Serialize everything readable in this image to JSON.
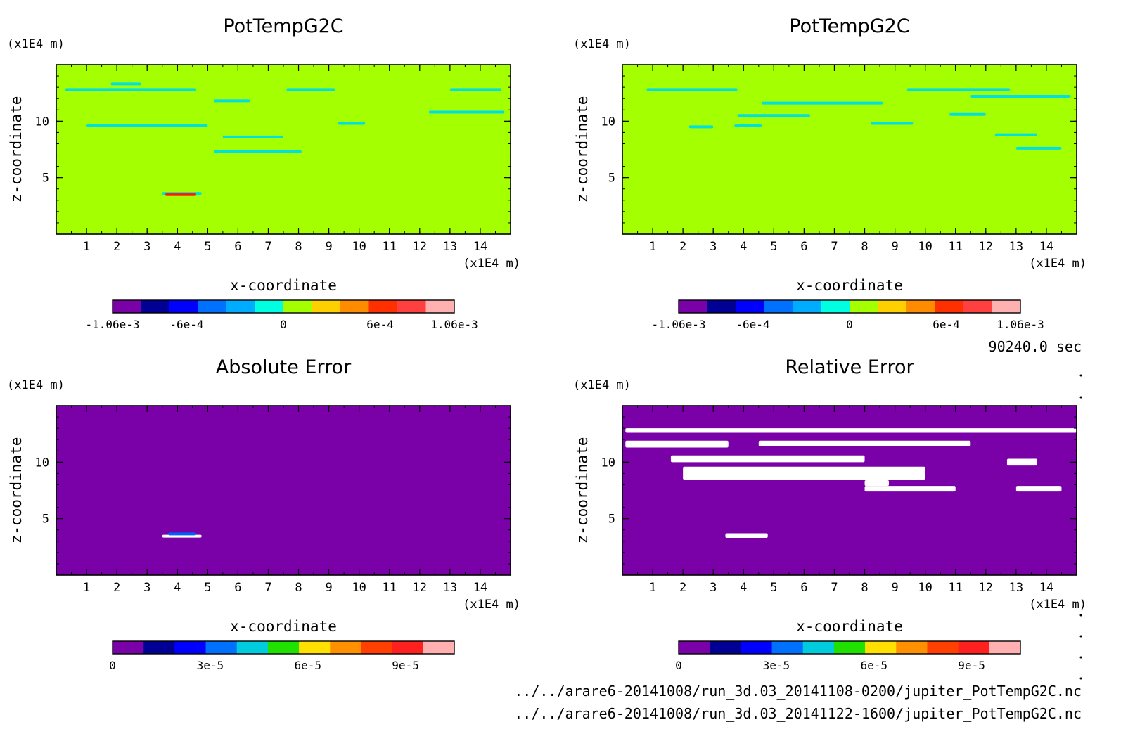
{
  "chart_data": [
    {
      "type": "heatmap",
      "title": "PotTempG2C",
      "xlabel": "x-coordinate",
      "ylabel": "z-coordinate",
      "x_unit": "(x1E4 m)",
      "y_unit": "(x1E4 m)",
      "xlim": [
        0,
        15
      ],
      "ylim": [
        0,
        15
      ],
      "x_ticks": [
        1,
        2,
        3,
        4,
        5,
        6,
        7,
        8,
        9,
        10,
        11,
        12,
        13,
        14
      ],
      "y_ticks": [
        5,
        10
      ],
      "background_color": "#a4ff00",
      "colorbar": {
        "colors": [
          "#7a00a8",
          "#000094",
          "#0000ff",
          "#0070ff",
          "#00acff",
          "#00ffe0",
          "#a4ff00",
          "#ffd000",
          "#ff8c00",
          "#ff3000",
          "#ff4040",
          "#ffb0b0"
        ],
        "tick_labels": [
          "-1.06e-3",
          "-6e-4",
          "0",
          "6e-4",
          "1.06e-3"
        ],
        "tick_values": [
          -0.00106,
          -0.0006,
          0,
          0.0006,
          0.00106
        ],
        "range": [
          -0.00106,
          0.00106
        ]
      },
      "features": [
        {
          "color": "#00e0e0",
          "x": [
            0.3,
            4.6
          ],
          "z": [
            12.8,
            12.8
          ]
        },
        {
          "color": "#00e0e0",
          "x": [
            1.8,
            2.8
          ],
          "z": [
            13.3,
            13.3
          ]
        },
        {
          "color": "#00e0e0",
          "x": [
            5.2,
            6.4
          ],
          "z": [
            11.8,
            11.8
          ]
        },
        {
          "color": "#00e0e0",
          "x": [
            7.6,
            9.2
          ],
          "z": [
            12.8,
            12.8
          ]
        },
        {
          "color": "#00e0e0",
          "x": [
            13.0,
            14.7
          ],
          "z": [
            12.8,
            12.8
          ]
        },
        {
          "color": "#00e0e0",
          "x": [
            12.3,
            14.8
          ],
          "z": [
            10.8,
            10.8
          ]
        },
        {
          "color": "#00e0e0",
          "x": [
            1.0,
            5.0
          ],
          "z": [
            9.6,
            9.6
          ]
        },
        {
          "color": "#00e0e0",
          "x": [
            5.5,
            7.5
          ],
          "z": [
            8.6,
            8.6
          ]
        },
        {
          "color": "#00e0e0",
          "x": [
            5.2,
            8.1
          ],
          "z": [
            7.3,
            7.3
          ]
        },
        {
          "color": "#00e0e0",
          "x": [
            9.3,
            10.2
          ],
          "z": [
            9.8,
            9.8
          ]
        },
        {
          "color": "#00e0e0",
          "x": [
            3.5,
            4.8
          ],
          "z": [
            3.6,
            3.6
          ]
        },
        {
          "color": "#ff2000",
          "x": [
            3.6,
            4.6
          ],
          "z": [
            3.5,
            3.5
          ]
        }
      ]
    },
    {
      "type": "heatmap",
      "title": "PotTempG2C",
      "xlabel": "x-coordinate",
      "ylabel": "z-coordinate",
      "x_unit": "(x1E4 m)",
      "y_unit": "(x1E4 m)",
      "xlim": [
        0,
        15
      ],
      "ylim": [
        0,
        15
      ],
      "x_ticks": [
        1,
        2,
        3,
        4,
        5,
        6,
        7,
        8,
        9,
        10,
        11,
        12,
        13,
        14
      ],
      "y_ticks": [
        5,
        10
      ],
      "background_color": "#a4ff00",
      "colorbar": {
        "colors": [
          "#7a00a8",
          "#000094",
          "#0000ff",
          "#0070ff",
          "#00acff",
          "#00ffe0",
          "#a4ff00",
          "#ffd000",
          "#ff8c00",
          "#ff3000",
          "#ff4040",
          "#ffb0b0"
        ],
        "tick_labels": [
          "-1.06e-3",
          "-6e-4",
          "0",
          "6e-4",
          "1.06e-3"
        ],
        "tick_values": [
          -0.00106,
          -0.0006,
          0,
          0.0006,
          0.00106
        ],
        "range": [
          -0.00106,
          0.00106
        ]
      },
      "features": [
        {
          "color": "#00e0e0",
          "x": [
            0.8,
            3.8
          ],
          "z": [
            12.8,
            12.8
          ]
        },
        {
          "color": "#00e0e0",
          "x": [
            3.8,
            6.2
          ],
          "z": [
            10.5,
            10.5
          ]
        },
        {
          "color": "#00e0e0",
          "x": [
            4.6,
            8.6
          ],
          "z": [
            11.6,
            11.6
          ]
        },
        {
          "color": "#00e0e0",
          "x": [
            9.4,
            12.8
          ],
          "z": [
            12.8,
            12.8
          ]
        },
        {
          "color": "#00e0e0",
          "x": [
            11.5,
            14.8
          ],
          "z": [
            12.2,
            12.2
          ]
        },
        {
          "color": "#00e0e0",
          "x": [
            2.2,
            3.0
          ],
          "z": [
            9.5,
            9.5
          ]
        },
        {
          "color": "#00e0e0",
          "x": [
            3.7,
            4.6
          ],
          "z": [
            9.6,
            9.6
          ]
        },
        {
          "color": "#00e0e0",
          "x": [
            8.2,
            9.6
          ],
          "z": [
            9.8,
            9.8
          ]
        },
        {
          "color": "#00e0e0",
          "x": [
            10.8,
            12.0
          ],
          "z": [
            10.6,
            10.6
          ]
        },
        {
          "color": "#00e0e0",
          "x": [
            12.3,
            13.7
          ],
          "z": [
            8.8,
            8.8
          ]
        },
        {
          "color": "#00e0e0",
          "x": [
            13.0,
            14.5
          ],
          "z": [
            7.6,
            7.6
          ]
        }
      ]
    },
    {
      "type": "heatmap",
      "title": "Absolute Error",
      "xlabel": "x-coordinate",
      "ylabel": "z-coordinate",
      "x_unit": "(x1E4 m)",
      "y_unit": "(x1E4 m)",
      "xlim": [
        0,
        15
      ],
      "ylim": [
        0,
        15
      ],
      "x_ticks": [
        1,
        2,
        3,
        4,
        5,
        6,
        7,
        8,
        9,
        10,
        11,
        12,
        13,
        14
      ],
      "y_ticks": [
        5,
        10
      ],
      "background_color": "#7a00a8",
      "colorbar": {
        "colors": [
          "#7a00a8",
          "#000094",
          "#0000ff",
          "#0070ff",
          "#00ccdd",
          "#20e000",
          "#ffe000",
          "#ff9000",
          "#ff4000",
          "#ff2020",
          "#ffb0b0"
        ],
        "tick_labels": [
          "0",
          "3e-5",
          "6e-5",
          "9e-5"
        ],
        "tick_values": [
          0,
          3e-05,
          6e-05,
          9e-05
        ],
        "range": [
          0,
          0.000105
        ]
      },
      "features": [
        {
          "color": "#ffffff",
          "x": [
            3.5,
            4.8
          ],
          "z": [
            3.45,
            3.45
          ]
        },
        {
          "color": "#0060ff",
          "x": [
            3.7,
            4.6
          ],
          "z": [
            3.65,
            3.65
          ]
        }
      ]
    },
    {
      "type": "heatmap",
      "title": "Relative Error",
      "xlabel": "x-coordinate",
      "ylabel": "z-coordinate",
      "x_unit": "(x1E4 m)",
      "y_unit": "(x1E4 m)",
      "xlim": [
        0,
        15
      ],
      "ylim": [
        0,
        15
      ],
      "x_ticks": [
        1,
        2,
        3,
        4,
        5,
        6,
        7,
        8,
        9,
        10,
        11,
        12,
        13,
        14
      ],
      "y_ticks": [
        5,
        10
      ],
      "background_color": "#7a00a8",
      "colorbar": {
        "colors": [
          "#7a00a8",
          "#000094",
          "#0000ff",
          "#0070ff",
          "#00ccdd",
          "#20e000",
          "#ffe000",
          "#ff9000",
          "#ff4000",
          "#ff2020",
          "#ffb0b0"
        ],
        "tick_labels": [
          "0",
          "3e-5",
          "6e-5",
          "9e-5"
        ],
        "tick_values": [
          0,
          3e-05,
          6e-05,
          9e-05
        ],
        "range": [
          0,
          0.000105
        ]
      },
      "features": [
        {
          "color": "#ffffff",
          "x": [
            0.1,
            15
          ],
          "z": [
            12.6,
            13.0
          ]
        },
        {
          "color": "#ffffff",
          "x": [
            0.1,
            3.5
          ],
          "z": [
            11.3,
            11.9
          ]
        },
        {
          "color": "#ffffff",
          "x": [
            4.5,
            11.5
          ],
          "z": [
            11.4,
            11.9
          ]
        },
        {
          "color": "#ffffff",
          "x": [
            1.6,
            8.0
          ],
          "z": [
            10.0,
            10.6
          ]
        },
        {
          "color": "#ffffff",
          "x": [
            2.0,
            10.0
          ],
          "z": [
            8.4,
            9.6
          ]
        },
        {
          "color": "#ffffff",
          "x": [
            8.0,
            8.8
          ],
          "z": [
            7.9,
            8.4
          ]
        },
        {
          "color": "#ffffff",
          "x": [
            8.0,
            11.0
          ],
          "z": [
            7.4,
            7.9
          ]
        },
        {
          "color": "#ffffff",
          "x": [
            12.7,
            13.7
          ],
          "z": [
            9.7,
            10.3
          ]
        },
        {
          "color": "#ffffff",
          "x": [
            13.0,
            14.5
          ],
          "z": [
            7.4,
            7.9
          ]
        },
        {
          "color": "#ffffff",
          "x": [
            3.4,
            4.8
          ],
          "z": [
            3.3,
            3.7
          ]
        }
      ]
    }
  ],
  "time_label": "90240.0 sec",
  "file_paths": [
    "../../arare6-20141008/run_3d.03_20141108-0200/jupiter_PotTempG2C.nc",
    "../../arare6-20141008/run_3d.03_20141122-1600/jupiter_PotTempG2C.nc"
  ]
}
